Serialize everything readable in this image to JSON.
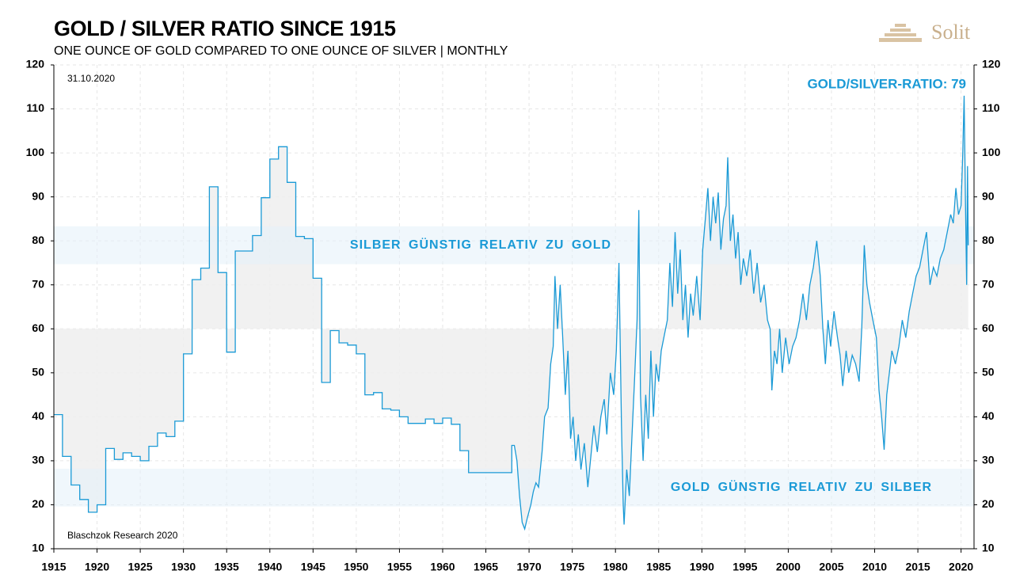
{
  "chart_data": {
    "type": "line",
    "title": "GOLD / SILVER RATIO SINCE 1915",
    "subtitle": "ONE OUNCE OF GOLD COMPARED TO ONE OUNCE OF SILVER | MONTHLY",
    "date": "31.10.2020",
    "source": "Blaschzok Research 2020",
    "logo": "Solit",
    "latest_label": "GOLD/SILVER-RATIO: 79",
    "annotations": [
      {
        "text": "SILBER GÜNSTIG RELATIV ZU GOLD",
        "ymin": 74.7,
        "ymax": 83.3
      },
      {
        "text": "GOLD GÜNSTIG RELATIV ZU SILBER",
        "ymin": 19.6,
        "ymax": 28.2
      }
    ],
    "fill_baseline": 60,
    "xlim": [
      1915,
      2021.5
    ],
    "xticks": [
      1915,
      1920,
      1925,
      1930,
      1935,
      1940,
      1945,
      1950,
      1955,
      1960,
      1965,
      1970,
      1975,
      1980,
      1985,
      1990,
      1995,
      2000,
      2005,
      2010,
      2015,
      2020
    ],
    "ylim": [
      10,
      120
    ],
    "yticks": [
      10,
      20,
      30,
      40,
      50,
      60,
      70,
      80,
      90,
      100,
      110,
      120
    ],
    "grid": true,
    "series": [
      {
        "color": "#1a9ad6",
        "x": [
          1915,
          1916,
          1916,
          1917,
          1917,
          1918,
          1918,
          1919,
          1919,
          1920,
          1920,
          1921,
          1921,
          1922,
          1922,
          1923,
          1923,
          1924,
          1924,
          1925,
          1925,
          1926,
          1926,
          1927,
          1927,
          1928,
          1928,
          1929,
          1929,
          1930,
          1930,
          1931,
          1931,
          1932,
          1932,
          1933,
          1933,
          1934,
          1934,
          1935,
          1935,
          1936,
          1936,
          1938,
          1938,
          1939,
          1939,
          1940,
          1940,
          1941,
          1941,
          1942,
          1942,
          1943,
          1943,
          1944,
          1944,
          1945,
          1945,
          1946,
          1946,
          1947,
          1947,
          1948,
          1948,
          1949,
          1949,
          1950,
          1950,
          1951,
          1951,
          1952,
          1952,
          1953,
          1953,
          1954,
          1954,
          1955,
          1955,
          1956,
          1956,
          1958,
          1958,
          1959,
          1959,
          1960,
          1960,
          1961,
          1961,
          1962,
          1962,
          1963,
          1963,
          1968,
          1968,
          1968.3,
          1968.6,
          1968.9,
          1969.2,
          1969.5,
          1969.8,
          1970.2,
          1970.5,
          1970.8,
          1971.1,
          1971.5,
          1971.8,
          1972.2,
          1972.5,
          1972.8,
          1973.0,
          1973.3,
          1973.6,
          1973.9,
          1974.2,
          1974.5,
          1974.8,
          1975.1,
          1975.4,
          1975.7,
          1976.0,
          1976.4,
          1976.8,
          1977.1,
          1977.5,
          1977.9,
          1978.3,
          1978.7,
          1979.0,
          1979.4,
          1979.8,
          1980.1,
          1980.4,
          1980.7,
          1980.9,
          1981.0,
          1981.3,
          1981.6,
          1981.9,
          1982.2,
          1982.5,
          1982.7,
          1982.9,
          1983.2,
          1983.5,
          1983.8,
          1984.1,
          1984.4,
          1984.7,
          1985.0,
          1985.3,
          1985.6,
          1986.0,
          1986.3,
          1986.6,
          1986.9,
          1987.2,
          1987.5,
          1987.8,
          1988.1,
          1988.4,
          1988.7,
          1989.0,
          1989.4,
          1989.8,
          1990.1,
          1990.4,
          1990.7,
          1991.0,
          1991.3,
          1991.6,
          1991.9,
          1992.2,
          1992.5,
          1992.8,
          1993.0,
          1993.3,
          1993.6,
          1993.9,
          1994.2,
          1994.5,
          1994.8,
          1995.2,
          1995.6,
          1996.0,
          1996.4,
          1996.8,
          1997.2,
          1997.6,
          1997.9,
          1998.1,
          1998.4,
          1998.7,
          1999.0,
          1999.3,
          1999.7,
          2000.1,
          2000.5,
          2000.9,
          2001.3,
          2001.7,
          2002.1,
          2002.5,
          2002.9,
          2003.3,
          2003.7,
          2004.0,
          2004.3,
          2004.6,
          2004.9,
          2005.3,
          2005.7,
          2006.0,
          2006.3,
          2006.7,
          2007.0,
          2007.4,
          2007.8,
          2008.2,
          2008.5,
          2008.8,
          2009.1,
          2009.4,
          2009.8,
          2010.2,
          2010.5,
          2010.8,
          2011.1,
          2011.4,
          2011.7,
          2012.0,
          2012.4,
          2012.8,
          2013.2,
          2013.6,
          2014.0,
          2014.4,
          2014.8,
          2015.2,
          2015.6,
          2016.0,
          2016.4,
          2016.8,
          2017.2,
          2017.6,
          2018.0,
          2018.4,
          2018.8,
          2019.1,
          2019.4,
          2019.7,
          2020.0,
          2020.2,
          2020.35,
          2020.5,
          2020.65,
          2020.75,
          2020.83
        ],
        "values": [
          40.5,
          40.5,
          31,
          31,
          24.5,
          24.5,
          21.2,
          21.2,
          18.3,
          18.3,
          20,
          20,
          32.8,
          32.8,
          30.3,
          30.3,
          31.8,
          31.8,
          31,
          31,
          30,
          30,
          33.3,
          33.3,
          36.3,
          36.3,
          35.5,
          35.5,
          39,
          39,
          54.3,
          54.3,
          71.2,
          71.2,
          73.8,
          73.8,
          92.3,
          92.3,
          72.8,
          72.8,
          54.7,
          54.7,
          77.7,
          77.7,
          81.2,
          81.2,
          89.8,
          89.8,
          98.6,
          98.6,
          101.4,
          101.4,
          93.3,
          93.3,
          81,
          81,
          80.5,
          80.5,
          71.5,
          71.5,
          47.8,
          47.8,
          59.6,
          59.6,
          56.8,
          56.8,
          56.3,
          56.3,
          54.3,
          54.3,
          45,
          45,
          45.5,
          45.5,
          41.8,
          41.8,
          41.5,
          41.5,
          40,
          40,
          38.5,
          38.5,
          39.5,
          39.5,
          38.5,
          38.5,
          39.7,
          39.7,
          38.3,
          38.3,
          32.3,
          32.3,
          27.3,
          27.3,
          33.5,
          33.5,
          30,
          22,
          16,
          14.5,
          17,
          20,
          23,
          25,
          24,
          32,
          40,
          42,
          52,
          56,
          72,
          60,
          70,
          58,
          45,
          55,
          35,
          40,
          30,
          36,
          28,
          34,
          24,
          30,
          38,
          32,
          40,
          44,
          36,
          50,
          45,
          55,
          75,
          38,
          20,
          15.5,
          28,
          22,
          35,
          48,
          62,
          87,
          45,
          30,
          45,
          35,
          55,
          40,
          52,
          48,
          55,
          58,
          62,
          75,
          65,
          82,
          68,
          78,
          62,
          70,
          58,
          68,
          63,
          72,
          62,
          78,
          85,
          92,
          80,
          90,
          84,
          91,
          78,
          85,
          88,
          99,
          80,
          86,
          76,
          82,
          70,
          76,
          72,
          78,
          68,
          75,
          66,
          70,
          62,
          60,
          46,
          55,
          52,
          60,
          50,
          58,
          52,
          56,
          58,
          62,
          68,
          62,
          70,
          74,
          80,
          72,
          60,
          52,
          62,
          56,
          64,
          58,
          54,
          47,
          55,
          50,
          54,
          52,
          48,
          60,
          79,
          70,
          66,
          62,
          58,
          46,
          40,
          32.5,
          45,
          50,
          55,
          52,
          56,
          62,
          58,
          64,
          68,
          72,
          74,
          78,
          82,
          70,
          74,
          72,
          76,
          78,
          82,
          86,
          84,
          92,
          86,
          88,
          100,
          113,
          90,
          70,
          97,
          79
        ]
      }
    ]
  }
}
